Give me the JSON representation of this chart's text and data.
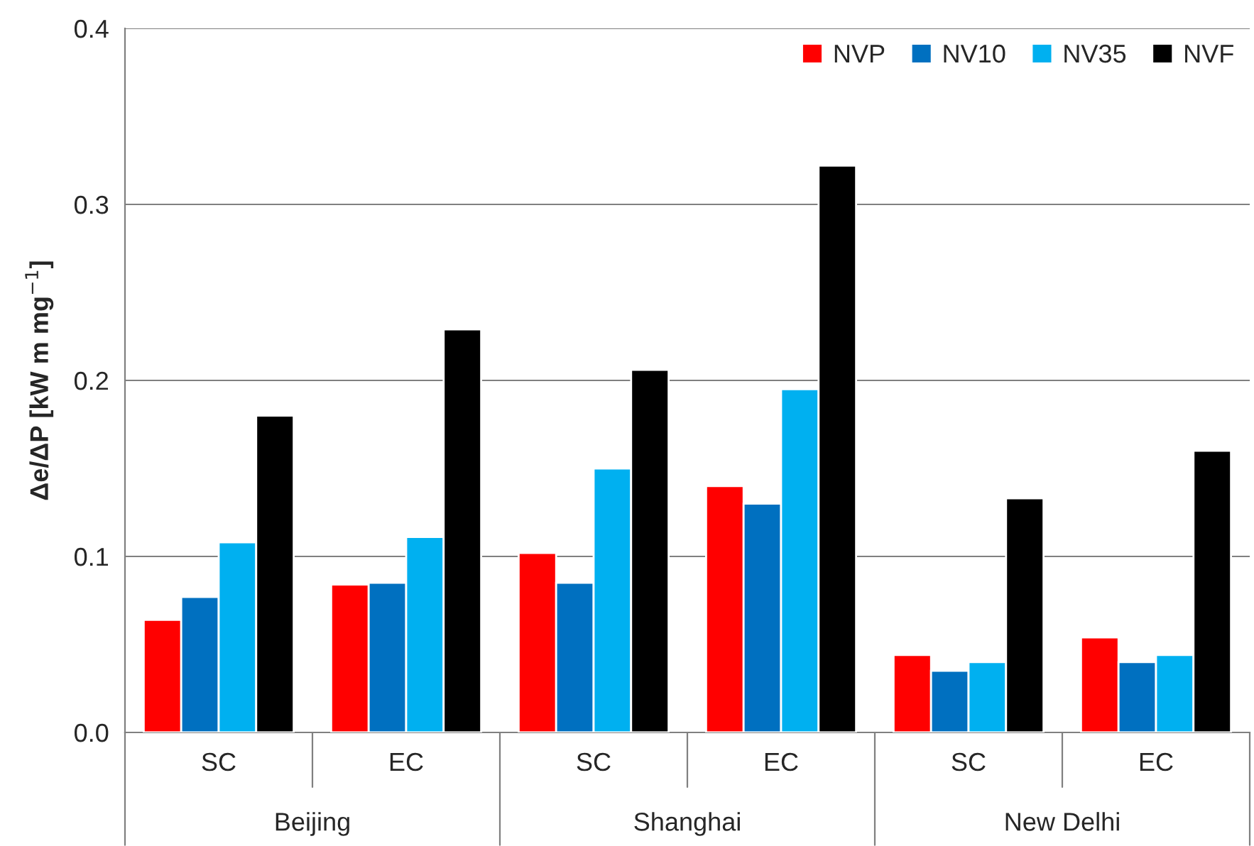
{
  "chart_data": {
    "type": "bar",
    "ylabel": "Δe/ΔP [kW m mg$^{−1}$]",
    "categories": [
      "SC",
      "EC",
      "SC",
      "EC",
      "SC",
      "EC"
    ],
    "series": [
      {
        "name": "NVP",
        "color": "#ff0000",
        "values": [
          0.064,
          0.084,
          0.102,
          0.14,
          0.044,
          0.054
        ]
      },
      {
        "name": "NV10",
        "color": "#0070c0",
        "values": [
          0.077,
          0.085,
          0.085,
          0.13,
          0.035,
          0.04
        ]
      },
      {
        "name": "NV35",
        "color": "#00b0f0",
        "values": [
          0.108,
          0.111,
          0.15,
          0.195,
          0.04,
          0.044
        ]
      },
      {
        "name": "NVF",
        "color": "#000000",
        "values": [
          0.18,
          0.229,
          0.206,
          0.322,
          0.133,
          0.16
        ]
      }
    ],
    "annotations": [
      "Beijing",
      "Shanghai",
      "New Delhi"
    ],
    "ylim": [
      0,
      0.4
    ],
    "yticks": [
      {
        "value": 0,
        "label": "0.0"
      },
      0.1,
      0.2,
      0.3,
      0.4
    ],
    "grid": "y",
    "legend": "top right"
  }
}
